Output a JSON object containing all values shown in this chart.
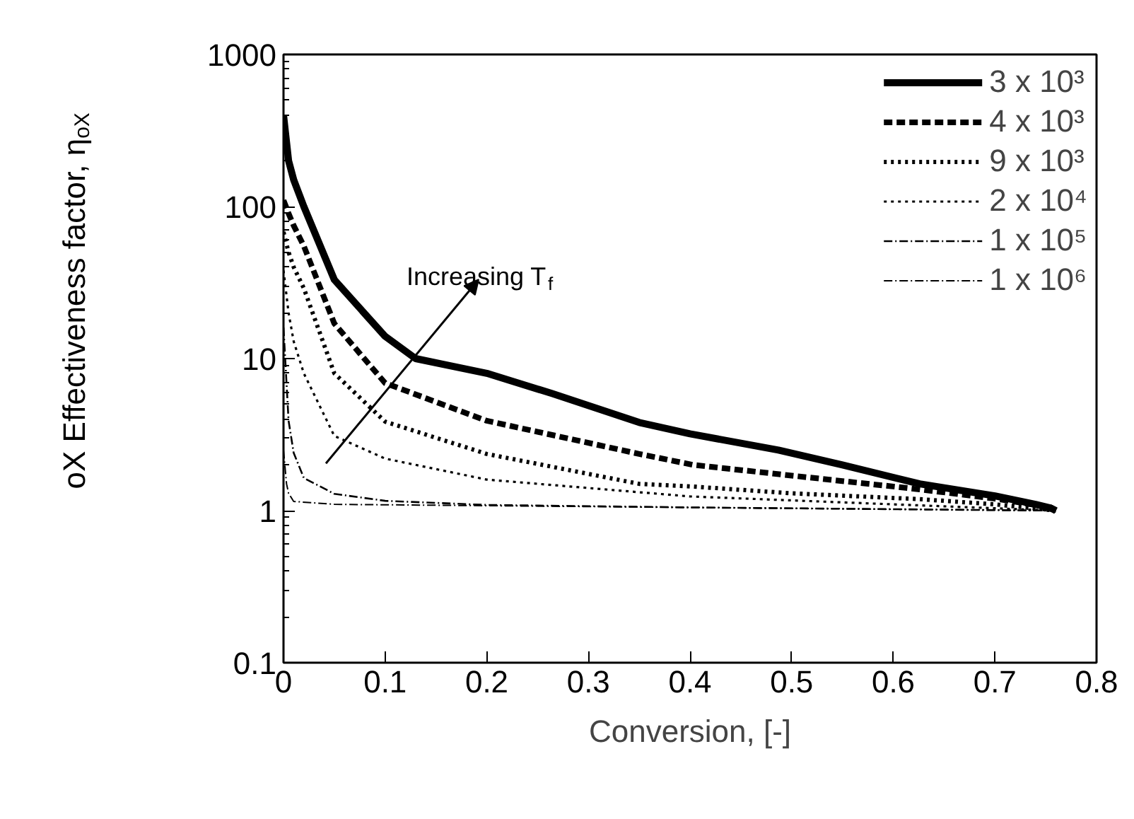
{
  "chart_data": {
    "type": "line",
    "xlabel": "Conversion, [-]",
    "ylabel": "oX Effectiveness factor, η$_{oX}$",
    "xlim": [
      0,
      0.8
    ],
    "xticks": [
      0,
      0.1,
      0.2,
      0.3,
      0.4,
      0.5,
      0.6,
      0.7,
      0.8
    ],
    "ylim": [
      0.1,
      1000
    ],
    "yticks": [
      0.1,
      1,
      10,
      100,
      1000
    ],
    "log": "y",
    "grid": false,
    "legend": "top right",
    "marker": "none",
    "annotations": [
      "Increasing T$_{f}$"
    ],
    "series": [
      {
        "name": "3 x 10³",
        "color": "#000000",
        "line_style": "solid",
        "x": [
          0,
          0.005,
          0.01,
          0.02,
          0.05,
          0.1,
          0.13,
          0.2,
          0.264,
          0.35,
          0.4,
          0.487,
          0.55,
          0.626,
          0.7,
          0.74,
          0.755,
          0.76
        ],
        "values": [
          400,
          200,
          150,
          100,
          33,
          14,
          10,
          8,
          5.9,
          3.8,
          3.2,
          2.5,
          2.0,
          1.5,
          1.25,
          1.1,
          1.04,
          1.0
        ]
      },
      {
        "name": "4 x 10³",
        "color": "#000000",
        "line_style": "dashed",
        "x": [
          0,
          0.005,
          0.01,
          0.02,
          0.05,
          0.1,
          0.2,
          0.35,
          0.403,
          0.5,
          0.626,
          0.7,
          0.755,
          0.76
        ],
        "values": [
          110,
          90,
          75,
          55,
          17,
          6.9,
          3.9,
          2.36,
          2.0,
          1.7,
          1.38,
          1.2,
          1.05,
          1.0
        ]
      },
      {
        "name": "9 x 10³",
        "color": "#000000",
        "line_style": "dotted",
        "x": [
          0,
          0.005,
          0.01,
          0.02,
          0.05,
          0.1,
          0.2,
          0.35,
          0.403,
          0.5,
          0.626,
          0.7,
          0.76
        ],
        "values": [
          68,
          50,
          40,
          29,
          8,
          3.85,
          2.36,
          1.5,
          1.44,
          1.3,
          1.19,
          1.1,
          1.0
        ]
      },
      {
        "name": "2 x 10⁴",
        "color": "#000000",
        "line_style": "dotted",
        "x": [
          0,
          0.005,
          0.01,
          0.02,
          0.05,
          0.1,
          0.2,
          0.4,
          0.6,
          0.76
        ],
        "values": [
          38,
          20,
          13,
          8,
          3.1,
          2.2,
          1.6,
          1.24,
          1.1,
          1.0
        ]
      },
      {
        "name": "1 x 10⁵",
        "color": "#000000",
        "line_style": "dashdot",
        "x": [
          0,
          0.005,
          0.01,
          0.02,
          0.05,
          0.1,
          0.2,
          0.4,
          0.76
        ],
        "values": [
          16,
          3.9,
          2.4,
          1.64,
          1.29,
          1.16,
          1.09,
          1.05,
          1.0
        ]
      },
      {
        "name": "1 x 10⁶",
        "color": "#000000",
        "line_style": "dashdot",
        "x": [
          0,
          0.003,
          0.005,
          0.01,
          0.05,
          0.76
        ],
        "values": [
          2.5,
          1.5,
          1.3,
          1.15,
          1.1,
          1.0
        ]
      }
    ]
  }
}
